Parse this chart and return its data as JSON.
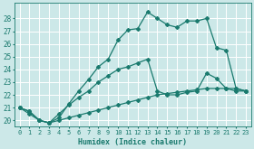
{
  "xlabel": "Humidex (Indice chaleur)",
  "bg_color": "#cce8e8",
  "grid_color": "#ffffff",
  "line_color": "#1a7a6e",
  "xlim": [
    -0.5,
    23.5
  ],
  "ylim": [
    19.5,
    29.2
  ],
  "xticks": [
    0,
    1,
    2,
    3,
    4,
    5,
    6,
    7,
    8,
    9,
    10,
    11,
    12,
    13,
    14,
    15,
    16,
    17,
    18,
    19,
    20,
    21,
    22,
    23
  ],
  "yticks": [
    20,
    21,
    22,
    23,
    24,
    25,
    26,
    27,
    28
  ],
  "series": [
    {
      "x": [
        0,
        1,
        2,
        3,
        4,
        5,
        6,
        7,
        8,
        9,
        10,
        11,
        12,
        13,
        14,
        15,
        16,
        17,
        18,
        19,
        20,
        21,
        22,
        23
      ],
      "y": [
        21.0,
        20.7,
        20.0,
        19.8,
        20.2,
        21.3,
        22.3,
        23.2,
        24.2,
        24.8,
        26.3,
        27.1,
        27.2,
        28.5,
        28.0,
        27.5,
        27.3,
        27.8,
        27.8,
        28.0,
        25.7,
        25.5,
        22.5,
        22.3
      ]
    },
    {
      "x": [
        0,
        1,
        2,
        3,
        4,
        5,
        6,
        7,
        8,
        9,
        10,
        11,
        12,
        13,
        14,
        15,
        16,
        17,
        18,
        19,
        20,
        21,
        22,
        23
      ],
      "y": [
        21.0,
        20.7,
        20.0,
        19.8,
        20.5,
        21.2,
        21.8,
        22.3,
        23.0,
        23.5,
        24.0,
        24.2,
        24.5,
        24.8,
        22.3,
        22.0,
        22.0,
        22.2,
        22.3,
        23.7,
        23.3,
        22.5,
        22.5,
        22.3
      ]
    },
    {
      "x": [
        0,
        1,
        2,
        3,
        4,
        5,
        6,
        7,
        8,
        9,
        10,
        11,
        12,
        13,
        14,
        15,
        16,
        17,
        18,
        19,
        20,
        21,
        22,
        23
      ],
      "y": [
        21.0,
        20.5,
        20.0,
        19.8,
        20.0,
        20.2,
        20.4,
        20.6,
        20.8,
        21.0,
        21.2,
        21.4,
        21.6,
        21.8,
        22.0,
        22.1,
        22.2,
        22.3,
        22.4,
        22.5,
        22.5,
        22.5,
        22.3,
        22.3
      ]
    }
  ]
}
